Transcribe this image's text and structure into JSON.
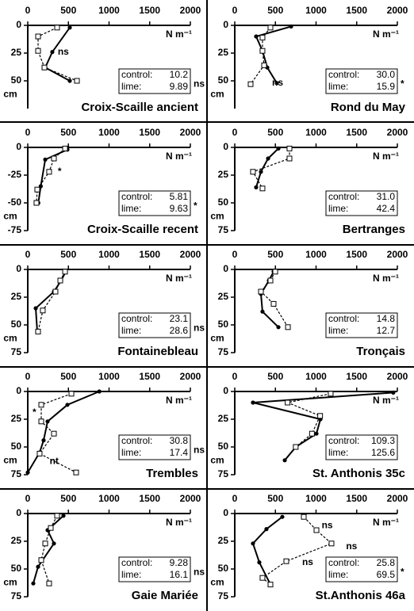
{
  "chart_data": [
    {
      "type": "line",
      "title": "Croix-Scaille ancient",
      "x_label": "N m⁻¹",
      "y_label": "cm",
      "xlim": [
        0,
        2000
      ],
      "xticks": [
        0,
        500,
        1000,
        1500,
        2000
      ],
      "ylim": [
        0,
        75
      ],
      "yticks": [
        0,
        25,
        50
      ],
      "series": [
        {
          "color": "#000",
          "marker": "circle",
          "x": [
            517,
            302,
            215,
            517
          ],
          "values": [
            2,
            24,
            38,
            50
          ]
        },
        {
          "color": "#000",
          "marker": "square",
          "dashed": true,
          "x": [
            361,
            127,
            127,
            205,
            605
          ],
          "values": [
            2,
            10,
            23,
            38,
            50
          ]
        }
      ],
      "box": [
        {
          "label": "control:",
          "value": "10.2"
        },
        {
          "label": "lime:",
          "value": "9.89"
        }
      ],
      "box_mark": "ns",
      "annotations": [
        {
          "text": "ns",
          "x": 330,
          "y": 24
        }
      ]
    },
    {
      "type": "line",
      "title": "Rond du May",
      "x_label": "N m⁻¹",
      "y_label": "cm",
      "xlim": [
        0,
        2000
      ],
      "xticks": [
        0,
        500,
        1000,
        1500,
        2000
      ],
      "ylim": [
        0,
        75
      ],
      "yticks": [
        0,
        25,
        50
      ],
      "series": [
        {
          "color": "#000",
          "marker": "circle",
          "x": [
            693,
            263,
            341,
            400,
            517
          ],
          "values": [
            1,
            10,
            23,
            38,
            52
          ]
        },
        {
          "color": "#000",
          "marker": "square",
          "dashed": true,
          "x": [
            439,
            341,
            341,
            361,
            195
          ],
          "values": [
            2,
            11,
            23,
            36,
            53
          ]
        }
      ],
      "box": [
        {
          "label": "control:",
          "value": "30.0"
        },
        {
          "label": "lime:",
          "value": "15.9"
        }
      ],
      "box_mark": "*",
      "annotations": [
        {
          "text": "ns",
          "x": 420,
          "y": 52
        }
      ]
    },
    {
      "type": "line",
      "title": "Croix-Scaille recent",
      "x_label": "N m⁻¹",
      "y_label": "cm",
      "xlim": [
        0,
        2000
      ],
      "xticks": [
        0,
        500,
        1000,
        1500,
        2000
      ],
      "ylim": [
        0,
        -75
      ],
      "yticks": [
        0,
        -25,
        -50,
        -75
      ],
      "series": [
        {
          "color": "#000",
          "marker": "circle",
          "x": [
            488,
            215,
            160,
            130
          ],
          "values": [
            -2,
            -11,
            -35,
            -50
          ]
        },
        {
          "color": "#000",
          "marker": "square",
          "dashed": true,
          "x": [
            459,
            322,
            263,
            117,
            107
          ],
          "values": [
            -1,
            -10,
            -22,
            -38,
            -50
          ]
        }
      ],
      "box": [
        {
          "label": "control:",
          "value": "5.81"
        },
        {
          "label": "lime:",
          "value": "9.63"
        }
      ],
      "box_mark": "*",
      "annotations": [
        {
          "text": "*",
          "x": 330,
          "y": -22
        }
      ]
    },
    {
      "type": "line",
      "title": "Bertranges",
      "x_label": "N m⁻¹",
      "y_label": "cm",
      "xlim": [
        0,
        2000
      ],
      "xticks": [
        0,
        500,
        1000,
        1500,
        2000
      ],
      "ylim": [
        0,
        75
      ],
      "yticks": [
        0,
        25,
        50,
        75
      ],
      "series": [
        {
          "color": "#000",
          "marker": "circle",
          "x": [
            537,
            410,
            322,
            263
          ],
          "values": [
            1,
            10,
            22,
            36
          ]
        },
        {
          "color": "#000",
          "marker": "square",
          "dashed": true,
          "x": [
            673,
            673,
            224,
            341
          ],
          "values": [
            1,
            10,
            22,
            37
          ]
        }
      ],
      "box": [
        {
          "label": "control:",
          "value": "31.0"
        },
        {
          "label": "lime:",
          "value": "42.4"
        }
      ]
    },
    {
      "type": "line",
      "title": "Fontainebleau",
      "x_label": "N m⁻¹",
      "y_label": "cm",
      "xlim": [
        0,
        2000
      ],
      "xticks": [
        0,
        500,
        1000,
        1500,
        2000
      ],
      "ylim": [
        0,
        75
      ],
      "yticks": [
        0,
        25,
        50,
        75
      ],
      "series": [
        {
          "color": "#000",
          "marker": "circle",
          "x": [
            468,
            410,
            322,
            98,
            117
          ],
          "values": [
            2,
            10,
            20,
            35,
            56
          ]
        },
        {
          "color": "#000",
          "marker": "square",
          "dashed": true,
          "x": [
            459,
            400,
            341,
            185,
            127
          ],
          "values": [
            2,
            10,
            20,
            37,
            56
          ]
        }
      ],
      "box": [
        {
          "label": "control:",
          "value": "23.1"
        },
        {
          "label": "lime:",
          "value": "28.6"
        }
      ],
      "box_mark": "ns"
    },
    {
      "type": "line",
      "title": "Tronçais",
      "x_label": "N m⁻¹",
      "y_label": "cm",
      "xlim": [
        0,
        2000
      ],
      "xticks": [
        0,
        500,
        1000,
        1500,
        2000
      ],
      "ylim": [
        0,
        75
      ],
      "yticks": [
        0,
        25,
        50,
        75
      ],
      "series": [
        {
          "color": "#000",
          "marker": "circle",
          "x": [
            478,
            420,
            322,
            341,
            537
          ],
          "values": [
            2,
            10,
            22,
            38,
            52
          ]
        },
        {
          "color": "#000",
          "marker": "square",
          "dashed": true,
          "x": [
            498,
            439,
            322,
            478,
            654
          ],
          "values": [
            2,
            10,
            20,
            31,
            52
          ]
        }
      ],
      "box": [
        {
          "label": "control:",
          "value": "14.8"
        },
        {
          "label": "lime:",
          "value": "12.7"
        }
      ]
    },
    {
      "type": "line",
      "title": "Trembles",
      "x_label": "N m⁻¹",
      "y_label": "cm",
      "xlim": [
        0,
        2000
      ],
      "xticks": [
        0,
        500,
        1000,
        1500,
        2000
      ],
      "ylim": [
        0,
        75
      ],
      "yticks": [
        0,
        25,
        50,
        75
      ],
      "series": [
        {
          "color": "#000",
          "marker": "circle",
          "x": [
            880,
            488,
            244,
            195,
            146,
            0
          ],
          "values": [
            0,
            12,
            27,
            44,
            55,
            73
          ]
        },
        {
          "color": "#000",
          "marker": "square",
          "dashed": true,
          "x": [
            537,
            166,
            166,
            322,
            146,
            595
          ],
          "values": [
            2,
            12,
            27,
            38,
            56,
            73
          ]
        }
      ],
      "box": [
        {
          "label": "control:",
          "value": "30.8"
        },
        {
          "label": "lime:",
          "value": "17.4"
        }
      ],
      "box_mark": "ns",
      "annotations": [
        {
          "text": "*",
          "x": 20,
          "y": 19
        },
        {
          "text": "nt",
          "x": 230,
          "y": 63
        }
      ]
    },
    {
      "type": "line",
      "title": "St. Anthonis 35c",
      "x_label": "N m⁻¹",
      "y_label": "cm",
      "xlim": [
        0,
        2000
      ],
      "xticks": [
        0,
        500,
        1000,
        1500,
        2000
      ],
      "ylim": [
        0,
        75
      ],
      "yticks": [
        0,
        25,
        50,
        75
      ],
      "series": [
        {
          "color": "#000",
          "marker": "circle",
          "x": [
            1950,
            224,
            1054,
            1005,
            751,
            615
          ],
          "values": [
            1,
            10,
            25,
            38,
            50,
            62
          ]
        },
        {
          "color": "#000",
          "marker": "square",
          "dashed": true,
          "x": [
            1180,
            650,
            1050,
            950,
            750
          ],
          "values": [
            2,
            10,
            22,
            38,
            50
          ]
        }
      ],
      "box": [
        {
          "label": "control:",
          "value": "109.3"
        },
        {
          "label": "lime:",
          "value": "125.6"
        }
      ]
    },
    {
      "type": "line",
      "title": "Gaie Mariée",
      "x_label": "N m⁻¹",
      "y_label": "cm",
      "xlim": [
        0,
        2000
      ],
      "xticks": [
        0,
        500,
        1000,
        1500,
        2000
      ],
      "ylim": [
        0,
        75
      ],
      "yticks": [
        0,
        25,
        50,
        75
      ],
      "series": [
        {
          "color": "#000",
          "marker": "circle",
          "x": [
            439,
            244,
            322,
            127,
            68
          ],
          "values": [
            2,
            15,
            27,
            48,
            63
          ]
        },
        {
          "color": "#000",
          "marker": "square",
          "dashed": true,
          "x": [
            361,
            283,
            215,
            166,
            263
          ],
          "values": [
            2,
            13,
            27,
            42,
            63
          ]
        }
      ],
      "box": [
        {
          "label": "control:",
          "value": "9.28"
        },
        {
          "label": "lime:",
          "value": "16.1"
        }
      ],
      "box_mark": "ns"
    },
    {
      "type": "line",
      "title": "St.Anthonis 46a",
      "x_label": "N m⁻¹",
      "y_label": "cm",
      "xlim": [
        0,
        2000
      ],
      "xticks": [
        0,
        500,
        1000,
        1500,
        2000
      ],
      "ylim": [
        0,
        75
      ],
      "yticks": [
        0,
        25,
        50,
        75
      ],
      "series": [
        {
          "color": "#000",
          "marker": "circle",
          "x": [
            585,
            390,
            224,
            302,
            439
          ],
          "values": [
            3,
            14,
            27,
            44,
            64
          ]
        },
        {
          "color": "#000",
          "marker": "square",
          "dashed": true,
          "x": [
            849,
            1005,
            1190,
            634,
            341,
            439
          ],
          "values": [
            3,
            15,
            27,
            43,
            58,
            64
          ]
        }
      ],
      "box": [
        {
          "label": "control:",
          "value": "25.8"
        },
        {
          "label": "lime:",
          "value": "69.5"
        }
      ],
      "box_mark": "*",
      "annotations": [
        {
          "text": "ns",
          "x": 1030,
          "y": 11
        },
        {
          "text": "ns",
          "x": 1330,
          "y": 30
        },
        {
          "text": "ns",
          "x": 790,
          "y": 44
        }
      ]
    }
  ]
}
